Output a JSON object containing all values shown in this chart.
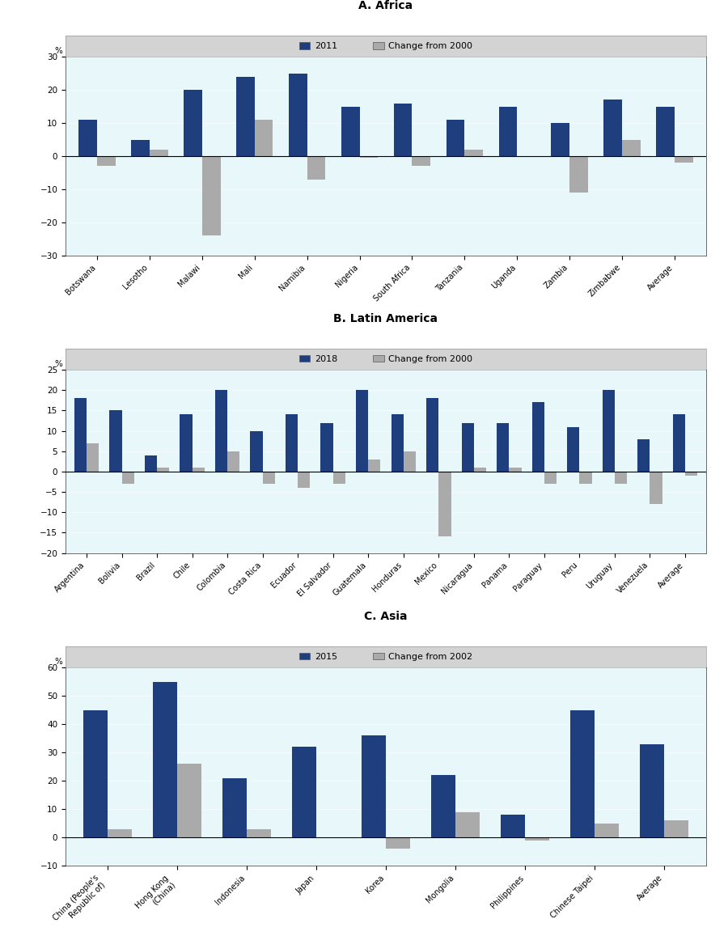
{
  "panel_A": {
    "title": "A. Africa",
    "legend_year": "2011",
    "legend_change": "Change from 2000",
    "categories": [
      "Botswana",
      "Lesotho",
      "Malawi",
      "Mali",
      "Namibia",
      "Nigeria",
      "South Africa",
      "Tanzania",
      "Uganda",
      "Zambia",
      "Zimbabwe",
      "Average"
    ],
    "values_year": [
      11,
      5,
      20,
      24,
      25,
      15,
      16,
      11,
      15,
      10,
      17,
      15
    ],
    "values_change": [
      -3,
      2,
      -24,
      11,
      -7,
      -0.5,
      -3,
      2,
      0,
      -11,
      5,
      -2
    ],
    "ylim": [
      -30,
      30
    ],
    "yticks": [
      -30,
      -20,
      -10,
      0,
      10,
      20,
      30
    ]
  },
  "panel_B": {
    "title": "B. Latin America",
    "legend_year": "2018",
    "legend_change": "Change from 2000",
    "categories": [
      "Argentina",
      "Bolivia",
      "Brazil",
      "Chile",
      "Colombia",
      "Costa Rica",
      "Ecuador",
      "El Salvador",
      "Guatemala",
      "Honduras",
      "Mexico",
      "Nicaragua",
      "Panama",
      "Paraguay",
      "Peru",
      "Uruguay",
      "Venezuela",
      "Average"
    ],
    "values_year": [
      18,
      15,
      4,
      14,
      20,
      10,
      14,
      12,
      20,
      14,
      18,
      12,
      12,
      17,
      11,
      20,
      8,
      14
    ],
    "values_change": [
      7,
      -3,
      1,
      1,
      5,
      -3,
      -4,
      -3,
      3,
      5,
      -16,
      1,
      1,
      -3,
      -3,
      -3,
      -8,
      -1
    ],
    "ylim": [
      -20,
      25
    ],
    "yticks": [
      -20,
      -15,
      -10,
      -5,
      0,
      5,
      10,
      15,
      20,
      25
    ]
  },
  "panel_C": {
    "title": "C. Asia",
    "legend_year": "2015",
    "legend_change": "Change from 2002",
    "categories": [
      "China (People's\nRepublic of)",
      "Hong Kong\n(China)",
      "Indonesia",
      "Japan",
      "Korea",
      "Mongolia",
      "Philippines",
      "Chinese Taipei",
      "Average"
    ],
    "values_year": [
      45,
      55,
      21,
      32,
      36,
      22,
      8,
      45,
      33
    ],
    "values_change": [
      3,
      26,
      3,
      0,
      -4,
      9,
      -1,
      5,
      6
    ],
    "ylim": [
      -10,
      60
    ],
    "yticks": [
      -10,
      0,
      10,
      20,
      30,
      40,
      50,
      60
    ]
  },
  "bar_color_year": "#1F3E7D",
  "bar_color_change": "#AAAAAA",
  "plot_bg_color": "#E8F8FA",
  "legend_bg_color": "#D3D3D3",
  "fig_bg_color": "#FFFFFF"
}
